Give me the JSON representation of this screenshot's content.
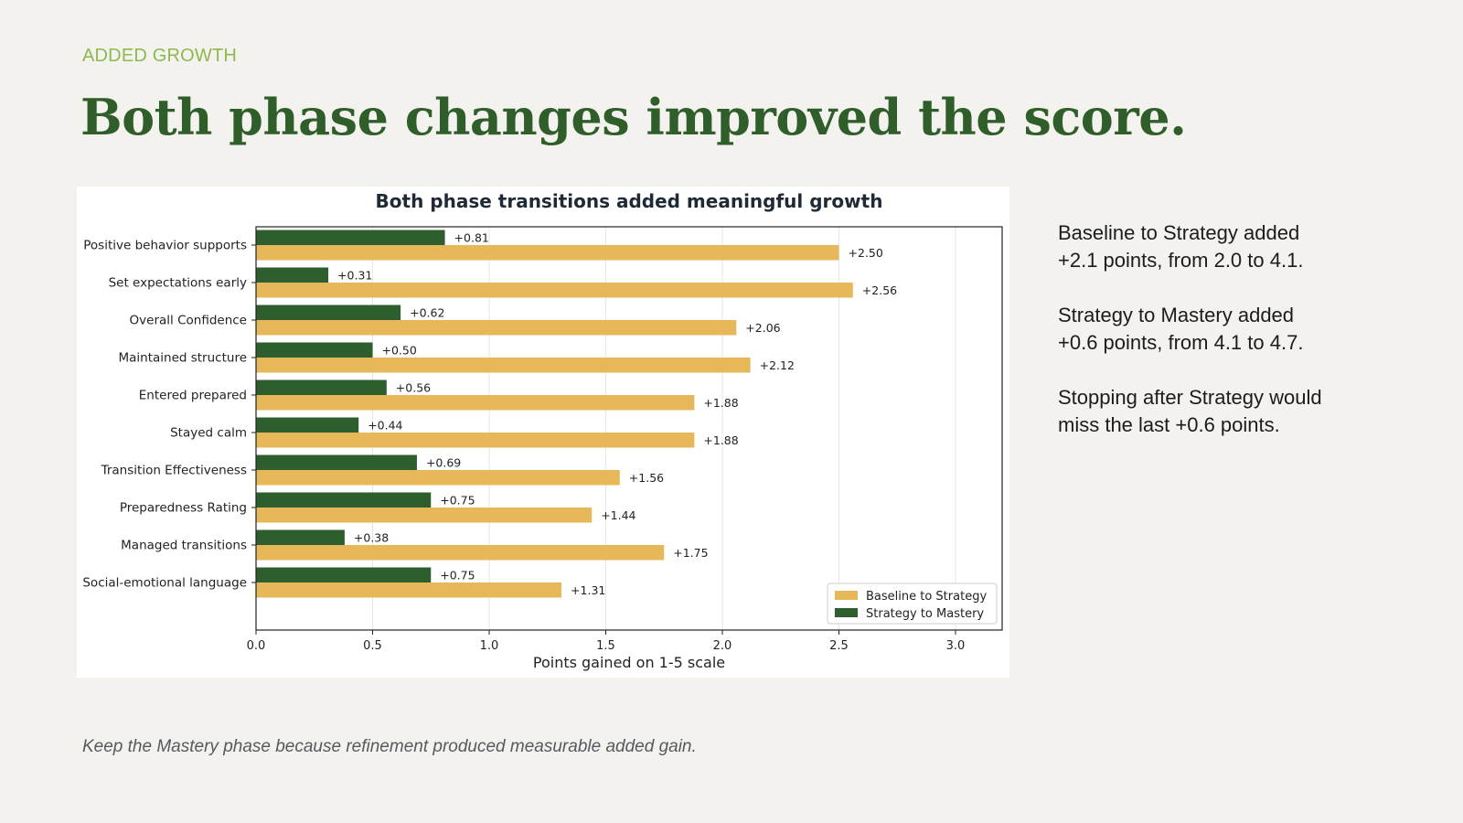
{
  "slide": {
    "kicker": "ADDED GROWTH",
    "headline": "Both phase changes improved the score.",
    "notes": [
      "Baseline to Strategy added +2.1 points, from 2.0 to 4.1.",
      "Strategy to Mastery added +0.6 points, from 4.1 to 4.7.",
      "Stopping after Strategy would miss the last +0.6 points."
    ],
    "footer": "Keep the Mastery phase because refinement produced measurable added gain."
  },
  "chart_data": {
    "type": "bar",
    "orientation": "horizontal",
    "title": "Both phase transitions added meaningful growth",
    "xlabel": "Points gained on 1-5 scale",
    "ylabel": "",
    "xlim": [
      0,
      3.2
    ],
    "xticks": [
      "0.0",
      "0.5",
      "1.0",
      "1.5",
      "2.0",
      "2.5",
      "3.0"
    ],
    "grid": "vertical",
    "legend_position": "bottom-right",
    "categories": [
      "Positive behavior supports",
      "Set expectations early",
      "Overall Confidence",
      "Maintained structure",
      "Entered prepared",
      "Stayed calm",
      "Transition Effectiveness",
      "Preparedness Rating",
      "Managed transitions",
      "Social-emotional language"
    ],
    "series": [
      {
        "name": "Baseline to Strategy",
        "color": "#e6b85a",
        "values": [
          2.5,
          2.56,
          2.06,
          2.12,
          1.88,
          1.88,
          1.56,
          1.44,
          1.75,
          1.31
        ],
        "labels": [
          "+2.50",
          "+2.56",
          "+2.06",
          "+2.12",
          "+1.88",
          "+1.88",
          "+1.56",
          "+1.44",
          "+1.75",
          "+1.31"
        ]
      },
      {
        "name": "Strategy to Mastery",
        "color": "#2e5e2e",
        "values": [
          0.81,
          0.31,
          0.62,
          0.5,
          0.56,
          0.44,
          0.69,
          0.75,
          0.38,
          0.75
        ],
        "labels": [
          "+0.81",
          "+0.31",
          "+0.62",
          "+0.50",
          "+0.56",
          "+0.44",
          "+0.69",
          "+0.75",
          "+0.38",
          "+0.75"
        ]
      }
    ]
  }
}
